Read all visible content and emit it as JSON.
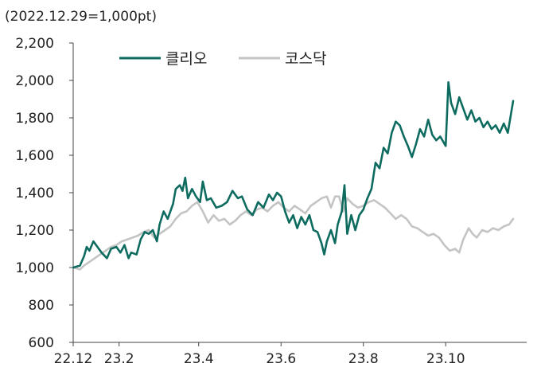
{
  "chart_data": {
    "type": "line",
    "title": "",
    "unit_note": "(2022.12.29=1,000pt)",
    "xlabel": "",
    "ylabel": "",
    "ylim": [
      600,
      2200
    ],
    "yticks": [
      600,
      800,
      1000,
      1200,
      1400,
      1600,
      1800,
      2000,
      2200
    ],
    "ytick_labels": [
      "600",
      "800",
      "1,000",
      "1,200",
      "1,400",
      "1,600",
      "1,800",
      "2,000",
      "2,200"
    ],
    "xlim": [
      "2022-12-29",
      "2023-11-30"
    ],
    "xticks": [
      {
        "date": "2022-12-29",
        "label": "22.12"
      },
      {
        "date": "2023-02-01",
        "label": "23.2"
      },
      {
        "date": "2023-04-01",
        "label": "23.4"
      },
      {
        "date": "2023-06-01",
        "label": "23.6"
      },
      {
        "date": "2023-08-01",
        "label": "23.8"
      },
      {
        "date": "2023-10-01",
        "label": "23.10"
      }
    ],
    "grid": false,
    "legend_position": "top-left",
    "series": [
      {
        "name": "클리오",
        "color": "#0d6b5f",
        "points": [
          [
            "2022-12-29",
            1000
          ],
          [
            "2023-01-03",
            1010
          ],
          [
            "2023-01-06",
            1060
          ],
          [
            "2023-01-08",
            1110
          ],
          [
            "2023-01-10",
            1090
          ],
          [
            "2023-01-13",
            1140
          ],
          [
            "2023-01-16",
            1110
          ],
          [
            "2023-01-19",
            1080
          ],
          [
            "2023-01-23",
            1050
          ],
          [
            "2023-01-26",
            1100
          ],
          [
            "2023-01-30",
            1110
          ],
          [
            "2023-02-02",
            1080
          ],
          [
            "2023-02-05",
            1120
          ],
          [
            "2023-02-08",
            1050
          ],
          [
            "2023-02-10",
            1080
          ],
          [
            "2023-02-14",
            1070
          ],
          [
            "2023-02-17",
            1150
          ],
          [
            "2023-02-20",
            1190
          ],
          [
            "2023-02-23",
            1180
          ],
          [
            "2023-02-26",
            1200
          ],
          [
            "2023-03-01",
            1140
          ],
          [
            "2023-03-03",
            1230
          ],
          [
            "2023-03-06",
            1300
          ],
          [
            "2023-03-09",
            1260
          ],
          [
            "2023-03-13",
            1340
          ],
          [
            "2023-03-15",
            1420
          ],
          [
            "2023-03-18",
            1440
          ],
          [
            "2023-03-20",
            1410
          ],
          [
            "2023-03-22",
            1480
          ],
          [
            "2023-03-24",
            1370
          ],
          [
            "2023-03-27",
            1420
          ],
          [
            "2023-03-30",
            1380
          ],
          [
            "2023-04-02",
            1350
          ],
          [
            "2023-04-04",
            1460
          ],
          [
            "2023-04-07",
            1360
          ],
          [
            "2023-04-10",
            1370
          ],
          [
            "2023-04-14",
            1320
          ],
          [
            "2023-04-18",
            1330
          ],
          [
            "2023-04-22",
            1350
          ],
          [
            "2023-04-26",
            1410
          ],
          [
            "2023-04-30",
            1370
          ],
          [
            "2023-05-03",
            1380
          ],
          [
            "2023-05-07",
            1310
          ],
          [
            "2023-05-11",
            1280
          ],
          [
            "2023-05-15",
            1350
          ],
          [
            "2023-05-19",
            1320
          ],
          [
            "2023-05-23",
            1390
          ],
          [
            "2023-05-26",
            1360
          ],
          [
            "2023-05-29",
            1400
          ],
          [
            "2023-06-01",
            1380
          ],
          [
            "2023-06-04",
            1300
          ],
          [
            "2023-06-07",
            1240
          ],
          [
            "2023-06-10",
            1280
          ],
          [
            "2023-06-13",
            1210
          ],
          [
            "2023-06-16",
            1270
          ],
          [
            "2023-06-19",
            1230
          ],
          [
            "2023-06-22",
            1280
          ],
          [
            "2023-06-25",
            1200
          ],
          [
            "2023-06-28",
            1190
          ],
          [
            "2023-07-01",
            1130
          ],
          [
            "2023-07-03",
            1070
          ],
          [
            "2023-07-05",
            1140
          ],
          [
            "2023-07-08",
            1200
          ],
          [
            "2023-07-11",
            1130
          ],
          [
            "2023-07-13",
            1230
          ],
          [
            "2023-07-16",
            1300
          ],
          [
            "2023-07-18",
            1440
          ],
          [
            "2023-07-20",
            1180
          ],
          [
            "2023-07-23",
            1280
          ],
          [
            "2023-07-26",
            1200
          ],
          [
            "2023-07-29",
            1280
          ],
          [
            "2023-08-01",
            1310
          ],
          [
            "2023-08-04",
            1370
          ],
          [
            "2023-08-07",
            1420
          ],
          [
            "2023-08-10",
            1560
          ],
          [
            "2023-08-13",
            1530
          ],
          [
            "2023-08-16",
            1640
          ],
          [
            "2023-08-19",
            1610
          ],
          [
            "2023-08-22",
            1720
          ],
          [
            "2023-08-25",
            1780
          ],
          [
            "2023-08-28",
            1760
          ],
          [
            "2023-08-31",
            1700
          ],
          [
            "2023-09-03",
            1650
          ],
          [
            "2023-09-06",
            1590
          ],
          [
            "2023-09-09",
            1660
          ],
          [
            "2023-09-12",
            1740
          ],
          [
            "2023-09-15",
            1700
          ],
          [
            "2023-09-18",
            1790
          ],
          [
            "2023-09-21",
            1710
          ],
          [
            "2023-09-24",
            1680
          ],
          [
            "2023-09-27",
            1700
          ],
          [
            "2023-10-01",
            1650
          ],
          [
            "2023-10-03",
            1990
          ],
          [
            "2023-10-05",
            1880
          ],
          [
            "2023-10-08",
            1820
          ],
          [
            "2023-10-11",
            1910
          ],
          [
            "2023-10-14",
            1850
          ],
          [
            "2023-10-17",
            1790
          ],
          [
            "2023-10-20",
            1840
          ],
          [
            "2023-10-23",
            1780
          ],
          [
            "2023-10-26",
            1800
          ],
          [
            "2023-10-29",
            1750
          ],
          [
            "2023-11-01",
            1780
          ],
          [
            "2023-11-04",
            1740
          ],
          [
            "2023-11-07",
            1760
          ],
          [
            "2023-11-10",
            1720
          ],
          [
            "2023-11-13",
            1770
          ],
          [
            "2023-11-16",
            1720
          ],
          [
            "2023-11-20",
            1890
          ]
        ]
      },
      {
        "name": "코스닥",
        "color": "#c4c4c4",
        "points": [
          [
            "2022-12-29",
            1000
          ],
          [
            "2023-01-03",
            990
          ],
          [
            "2023-01-06",
            1010
          ],
          [
            "2023-01-10",
            1030
          ],
          [
            "2023-01-14",
            1050
          ],
          [
            "2023-01-18",
            1070
          ],
          [
            "2023-01-22",
            1090
          ],
          [
            "2023-01-26",
            1110
          ],
          [
            "2023-01-30",
            1120
          ],
          [
            "2023-02-03",
            1140
          ],
          [
            "2023-02-07",
            1150
          ],
          [
            "2023-02-11",
            1160
          ],
          [
            "2023-02-15",
            1170
          ],
          [
            "2023-02-19",
            1190
          ],
          [
            "2023-02-23",
            1200
          ],
          [
            "2023-02-27",
            1160
          ],
          [
            "2023-03-03",
            1180
          ],
          [
            "2023-03-07",
            1200
          ],
          [
            "2023-03-11",
            1220
          ],
          [
            "2023-03-15",
            1260
          ],
          [
            "2023-03-19",
            1290
          ],
          [
            "2023-03-23",
            1300
          ],
          [
            "2023-03-27",
            1330
          ],
          [
            "2023-03-31",
            1350
          ],
          [
            "2023-04-04",
            1300
          ],
          [
            "2023-04-08",
            1240
          ],
          [
            "2023-04-12",
            1280
          ],
          [
            "2023-04-16",
            1250
          ],
          [
            "2023-04-20",
            1260
          ],
          [
            "2023-04-24",
            1230
          ],
          [
            "2023-04-28",
            1250
          ],
          [
            "2023-05-02",
            1280
          ],
          [
            "2023-05-06",
            1300
          ],
          [
            "2023-05-10",
            1280
          ],
          [
            "2023-05-14",
            1310
          ],
          [
            "2023-05-18",
            1320
          ],
          [
            "2023-05-22",
            1300
          ],
          [
            "2023-05-26",
            1330
          ],
          [
            "2023-05-30",
            1350
          ],
          [
            "2023-06-03",
            1320
          ],
          [
            "2023-06-07",
            1300
          ],
          [
            "2023-06-11",
            1330
          ],
          [
            "2023-06-15",
            1310
          ],
          [
            "2023-06-19",
            1290
          ],
          [
            "2023-06-23",
            1330
          ],
          [
            "2023-06-27",
            1350
          ],
          [
            "2023-07-01",
            1370
          ],
          [
            "2023-07-05",
            1380
          ],
          [
            "2023-07-08",
            1320
          ],
          [
            "2023-07-11",
            1380
          ],
          [
            "2023-07-14",
            1380
          ],
          [
            "2023-07-17",
            1300
          ],
          [
            "2023-07-20",
            1370
          ],
          [
            "2023-07-24",
            1340
          ],
          [
            "2023-07-28",
            1320
          ],
          [
            "2023-08-01",
            1330
          ],
          [
            "2023-08-05",
            1350
          ],
          [
            "2023-08-09",
            1360
          ],
          [
            "2023-08-13",
            1340
          ],
          [
            "2023-08-17",
            1320
          ],
          [
            "2023-08-21",
            1290
          ],
          [
            "2023-08-25",
            1260
          ],
          [
            "2023-08-29",
            1280
          ],
          [
            "2023-09-02",
            1260
          ],
          [
            "2023-09-06",
            1220
          ],
          [
            "2023-09-10",
            1210
          ],
          [
            "2023-09-14",
            1190
          ],
          [
            "2023-09-18",
            1170
          ],
          [
            "2023-09-22",
            1180
          ],
          [
            "2023-09-26",
            1160
          ],
          [
            "2023-09-30",
            1120
          ],
          [
            "2023-10-04",
            1090
          ],
          [
            "2023-10-08",
            1100
          ],
          [
            "2023-10-11",
            1080
          ],
          [
            "2023-10-14",
            1150
          ],
          [
            "2023-10-18",
            1210
          ],
          [
            "2023-10-21",
            1180
          ],
          [
            "2023-10-24",
            1160
          ],
          [
            "2023-10-28",
            1200
          ],
          [
            "2023-11-01",
            1190
          ],
          [
            "2023-11-05",
            1210
          ],
          [
            "2023-11-09",
            1200
          ],
          [
            "2023-11-13",
            1220
          ],
          [
            "2023-11-17",
            1230
          ],
          [
            "2023-11-20",
            1260
          ]
        ]
      }
    ]
  }
}
